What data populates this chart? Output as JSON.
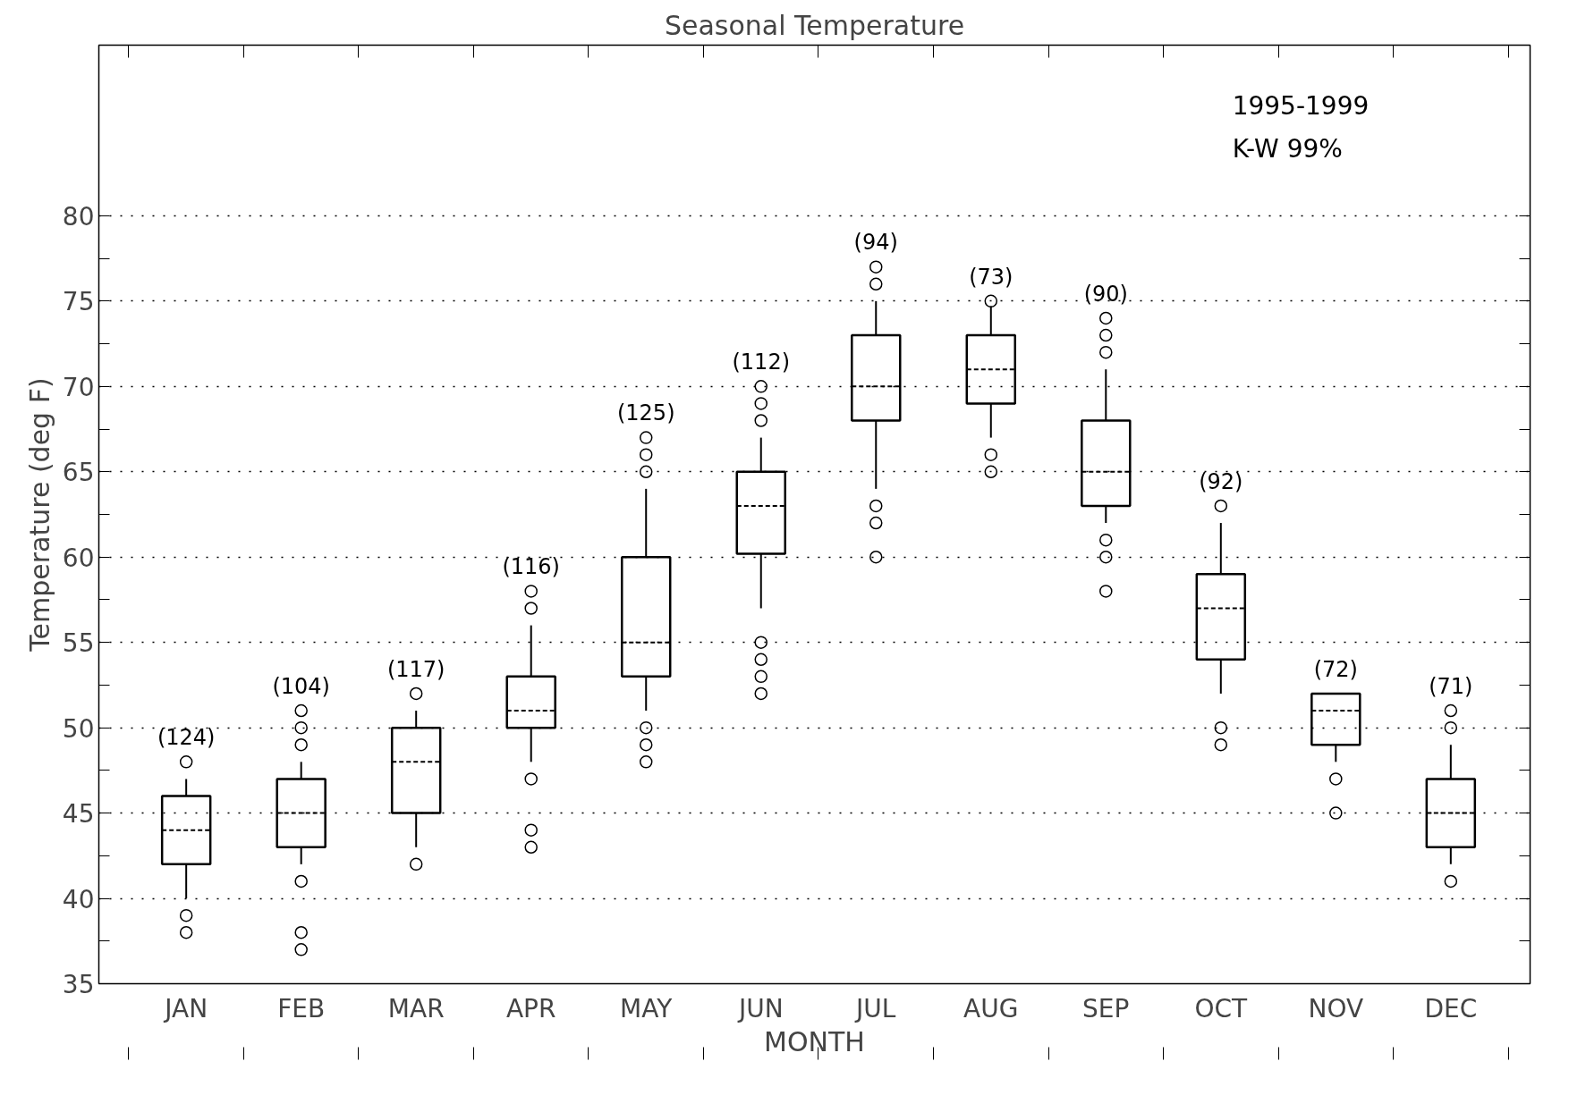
{
  "chart_data": {
    "type": "box",
    "title": "Seasonal Temperature",
    "xlabel": "MONTH",
    "ylabel": "Temperature (deg F)",
    "categories": [
      "JAN",
      "FEB",
      "MAR",
      "APR",
      "MAY",
      "JUN",
      "JUL",
      "AUG",
      "SEP",
      "OCT",
      "NOV",
      "DEC"
    ],
    "boxes": [
      {
        "low": 40,
        "q1": 42,
        "median": 44,
        "q3": 46,
        "high": 47,
        "outliers": [
          48,
          39,
          38
        ]
      },
      {
        "low": 42,
        "q1": 43,
        "median": 45,
        "q3": 47,
        "high": 48,
        "outliers": [
          51,
          50,
          49,
          41,
          38,
          37
        ]
      },
      {
        "low": 43,
        "q1": 45,
        "median": 48,
        "q3": 50,
        "high": 51,
        "outliers": [
          52,
          42
        ]
      },
      {
        "low": 48,
        "q1": 50,
        "median": 51,
        "q3": 53,
        "high": 56,
        "outliers": [
          58,
          57,
          47,
          44,
          43
        ]
      },
      {
        "low": 51,
        "q1": 53,
        "median": 55,
        "q3": 60,
        "high": 64,
        "outliers": [
          67,
          66,
          65,
          50,
          49,
          48
        ]
      },
      {
        "low": 57,
        "q1": 60.2,
        "median": 63,
        "q3": 65,
        "high": 67,
        "outliers": [
          70,
          69,
          68,
          55,
          54,
          53,
          52
        ]
      },
      {
        "low": 64,
        "q1": 68,
        "median": 70,
        "q3": 73,
        "high": 75,
        "outliers": [
          77,
          76,
          63,
          62,
          60
        ]
      },
      {
        "low": 67,
        "q1": 69,
        "median": 71,
        "q3": 73,
        "high": 74.7,
        "outliers": [
          75,
          66,
          65
        ]
      },
      {
        "low": 62,
        "q1": 63,
        "median": 65,
        "q3": 68,
        "high": 71,
        "outliers": [
          74,
          73,
          72,
          61,
          60,
          58
        ]
      },
      {
        "low": 52,
        "q1": 54,
        "median": 57,
        "q3": 59,
        "high": 62,
        "outliers": [
          63,
          50,
          49
        ]
      },
      {
        "low": 48,
        "q1": 49,
        "median": 51,
        "q3": 52,
        "high": 52,
        "outliers": [
          47,
          45
        ]
      },
      {
        "low": 42,
        "q1": 43,
        "median": 45,
        "q3": 47,
        "high": 49,
        "outliers": [
          51,
          50,
          41
        ]
      }
    ],
    "ylim": [
      35,
      90
    ],
    "yticks": [
      35,
      {
        "value": 37.5,
        "label": null
      },
      40,
      {
        "value": 42.5,
        "label": null
      },
      45,
      {
        "value": 47.5,
        "label": null
      },
      50,
      {
        "value": 52.5,
        "label": null
      },
      55,
      {
        "value": 57.5,
        "label": null
      },
      60,
      {
        "value": 62.5,
        "label": null
      },
      65,
      {
        "value": 67.5,
        "label": null
      },
      70,
      {
        "value": 72.5,
        "label": null
      },
      75,
      {
        "value": 77.5,
        "label": null
      },
      80
    ],
    "grid": "y",
    "marker": "circle",
    "annotations": [
      "(124)",
      "(104)",
      "(117)",
      "(116)",
      "(125)",
      "(112)",
      "(94)",
      "(73)",
      "(90)",
      "(92)",
      "(72)",
      "(71)",
      "1995-1999",
      "K-W 99%"
    ]
  }
}
